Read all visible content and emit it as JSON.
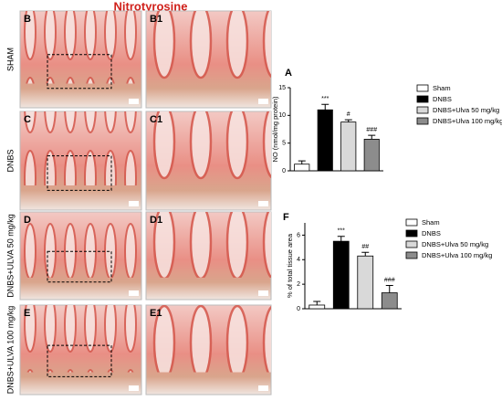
{
  "title": "Nitrotyrosine",
  "row_labels": [
    "SHAM",
    "DNBS",
    "DNBS+ULVA 50 mg/kg",
    "DNBS+ULVA 100 mg/kg"
  ],
  "image_panels": [
    [
      "B",
      "B1"
    ],
    [
      "C",
      "C1"
    ],
    [
      "D",
      "D1"
    ],
    [
      "E",
      "E1"
    ]
  ],
  "chart_data": [
    {
      "type": "bar",
      "panel_label": "A",
      "ylabel": "NO (nmol/mg protein)",
      "categories": [
        "Sham",
        "DNBS",
        "DNBS+Ulva 50 mg/kg",
        "DNBS+Ulva 100 mg/kg"
      ],
      "colors": [
        "#ffffff",
        "#000000",
        "#d9d9d9",
        "#8c8c8c"
      ],
      "values": [
        1.2,
        11,
        8.8,
        5.7
      ],
      "errors": [
        0.6,
        1.0,
        0.4,
        0.7
      ],
      "annotations": [
        null,
        "***",
        "#",
        "###"
      ],
      "ylim": [
        0,
        15
      ],
      "yticks": [
        0,
        5,
        10,
        15
      ]
    },
    {
      "type": "bar",
      "panel_label": "F",
      "ylabel": "% of total tissue area",
      "categories": [
        "Sham",
        "DNBS",
        "DNBS+Ulva 50 mg/kg",
        "DNBS+Ulva 100 mg/kg"
      ],
      "colors": [
        "#ffffff",
        "#000000",
        "#d9d9d9",
        "#8c8c8c"
      ],
      "values": [
        0.3,
        5.5,
        4.3,
        1.3
      ],
      "errors": [
        0.3,
        0.4,
        0.3,
        0.6
      ],
      "annotations": [
        null,
        "***",
        "##",
        "###"
      ],
      "ylim": [
        0,
        7
      ],
      "yticks": [
        0,
        2,
        4,
        6
      ]
    }
  ]
}
